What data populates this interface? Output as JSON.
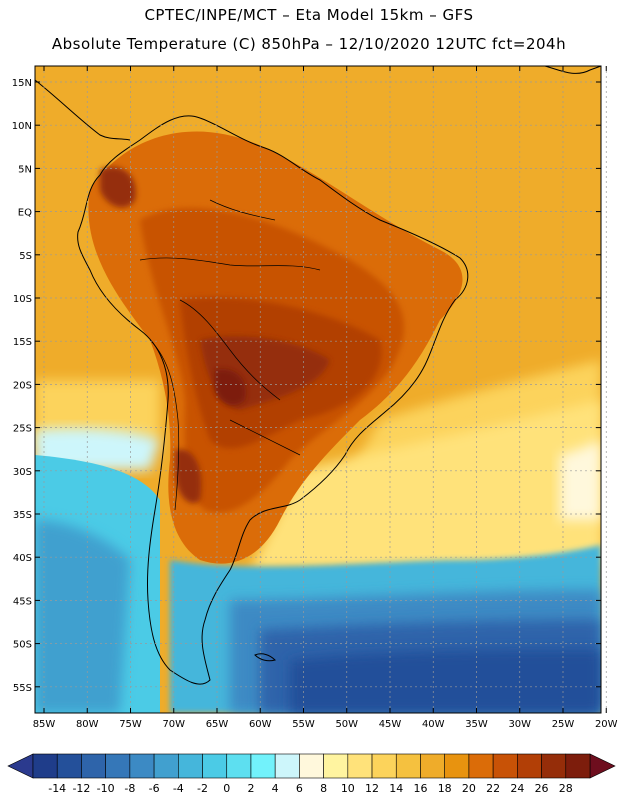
{
  "header": {
    "line1": "CPTEC/INPE/MCT –  Eta Model 15km – GFS",
    "line2": "Absolute Temperature (C) 850hPa – 12/10/2020 12UTC fct=204h"
  },
  "axes": {
    "lat_labels": [
      "15N",
      "10N",
      "5N",
      "EQ",
      "5S",
      "10S",
      "15S",
      "20S",
      "25S",
      "30S",
      "35S",
      "40S",
      "45S",
      "50S",
      "55S"
    ],
    "lon_labels": [
      "85W",
      "80W",
      "75W",
      "70W",
      "65W",
      "60W",
      "55W",
      "50W",
      "45W",
      "40W",
      "35W",
      "30W",
      "25W",
      "20W"
    ]
  },
  "colorbar": {
    "labels": [
      "-14",
      "-12",
      "-10",
      "-8",
      "-6",
      "-4",
      "-2",
      "0",
      "2",
      "4",
      "6",
      "8",
      "10",
      "12",
      "14",
      "16",
      "18",
      "20",
      "22",
      "24",
      "26",
      "28"
    ],
    "colors": [
      "#1f3d8a",
      "#24509a",
      "#2e64aa",
      "#3577b8",
      "#3c8ac4",
      "#41a0cf",
      "#45b6db",
      "#4bcbe6",
      "#5ddff0",
      "#72f2fb",
      "#cdf6fb",
      "#fff8dc",
      "#fff4a0",
      "#ffe27a",
      "#fcd35b",
      "#f5c13f",
      "#efac2a",
      "#e8930f",
      "#db6c08",
      "#c85206",
      "#b23f06",
      "#952d09",
      "#7d1d0c"
    ],
    "left_color": "#2b3a8e",
    "right_color": "#6e0e1e"
  }
}
